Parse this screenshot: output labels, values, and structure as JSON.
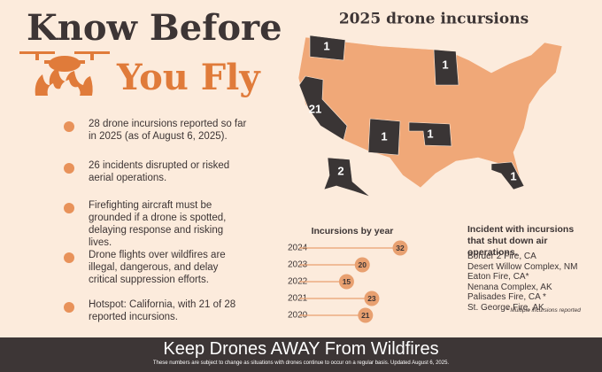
{
  "header": {
    "title_line1": "Know Before",
    "title_line2": "You Fly"
  },
  "facts": [
    "28 drone incursions reported so far in 2025 (as of August 6, 2025).",
    "26 incidents disrupted or risked aerial operations.",
    "Firefighting aircraft must be grounded if a drone is spotted, delaying response and risking lives.",
    "Drone flights over wildfires are illegal, dangerous, and delay critical suppression efforts.",
    "Hotspot: California, with 21 of 28 reported incursions."
  ],
  "map": {
    "title": "2025 drone incursions",
    "counts": [
      1,
      1,
      21,
      1,
      1,
      2,
      1
    ]
  },
  "chart_data": {
    "type": "lollipop",
    "title": "Incursions by year",
    "categories": [
      "2024",
      "2023",
      "2022",
      "2021",
      "2020"
    ],
    "values": [
      32,
      20,
      15,
      23,
      21
    ],
    "color": "#e8a070"
  },
  "incidents": {
    "title": "Incident with incursions that shut down air operations.",
    "items": [
      "Border 2 Fire, CA",
      "Desert Willow Complex, NM",
      "Eaton Fire, CA*",
      "Nenana Complex, AK",
      "Palisades Fire, CA *",
      "St. George Fire, AK"
    ],
    "note": "* Multiple incursions reported"
  },
  "footer": {
    "title": "Keep Drones AWAY From Wildfires",
    "note": "These numbers are subject to change as situations with drones continue to occur on a regular basis. Updated August 6, 2025."
  }
}
